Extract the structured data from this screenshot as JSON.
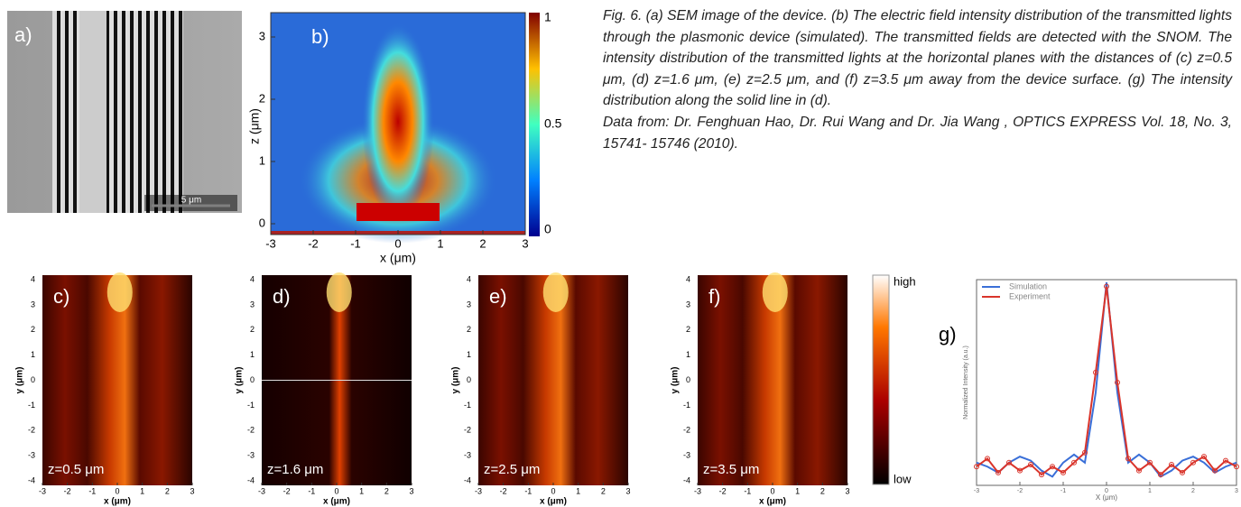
{
  "panels": {
    "a": {
      "label": "a)",
      "scale_bar": "5 μm"
    },
    "b": {
      "label": "b)",
      "x_label": "x (μm)",
      "y_label": "z (μm)",
      "xticks": [
        -3,
        -2,
        -1,
        0,
        1,
        2,
        3
      ],
      "yticks": [
        0,
        1,
        2,
        3
      ],
      "colorbar_ticks": [
        0,
        0.5,
        1
      ]
    },
    "map_axes": {
      "x_label": "x (μm)",
      "y_label": "y (μm)",
      "xticks": [
        -3,
        -2,
        -1,
        0,
        1,
        2,
        3
      ],
      "yticks": [
        4,
        3,
        2,
        1,
        0,
        -1,
        -2,
        -3,
        -4
      ]
    },
    "maps": [
      {
        "label": "c)",
        "note": "z=0.5 μm"
      },
      {
        "label": "d)",
        "note": "z=1.6 μm"
      },
      {
        "label": "e)",
        "note": "z=2.5 μm"
      },
      {
        "label": "f)",
        "note": "z=3.5 μm"
      }
    ],
    "colorbar": {
      "high": "high",
      "low": "low"
    },
    "g": {
      "label": "g)",
      "type": "line",
      "x_label": "X (μm)",
      "y_label": "Normalized Intensity (a.u.)",
      "x": [
        -3,
        -2.75,
        -2.5,
        -2.25,
        -2,
        -1.75,
        -1.5,
        -1.25,
        -1,
        -0.75,
        -0.5,
        -0.25,
        0,
        0.25,
        0.5,
        0.75,
        1,
        1.25,
        1.5,
        1.75,
        2,
        2.25,
        2.5,
        2.75,
        3
      ],
      "series": [
        {
          "name": "Simulation",
          "color": "#3a6fd8",
          "values": [
            0.1,
            0.08,
            0.05,
            0.1,
            0.13,
            0.11,
            0.06,
            0.03,
            0.1,
            0.14,
            0.1,
            0.45,
            1,
            0.45,
            0.1,
            0.14,
            0.1,
            0.03,
            0.06,
            0.11,
            0.13,
            0.1,
            0.05,
            0.08,
            0.1
          ]
        },
        {
          "name": "Experiment",
          "color": "#d9342b",
          "values": [
            0.08,
            0.12,
            0.05,
            0.1,
            0.06,
            0.09,
            0.04,
            0.08,
            0.05,
            0.1,
            0.15,
            0.55,
            0.98,
            0.5,
            0.12,
            0.06,
            0.1,
            0.04,
            0.09,
            0.05,
            0.1,
            0.13,
            0.06,
            0.11,
            0.08
          ]
        }
      ],
      "xlim": [
        -3,
        3
      ],
      "ylim": [
        0,
        1
      ],
      "xticks": [
        -3,
        -2,
        -1,
        0,
        1,
        2,
        3
      ]
    }
  },
  "caption": {
    "text": "Fig. 6. (a) SEM image of the device. (b) The electric field intensity distribution of the transmitted lights through the plasmonic device (simulated). The transmitted fields are detected with the SNOM. The intensity distribution of the transmitted lights at the horizontal planes with the distances of (c) z=0.5 μm, (d) z=1.6 μm, (e) z=2.5 μm, and (f) z=3.5 μm away from the device surface. (g) The intensity distribution along the solid line in (d).",
    "source": "Data from: Dr. Fenghuan Hao, Dr. Rui Wang and Dr. Jia Wang , OPTICS EXPRESS Vol. 18, No. 3, 15741- 15746 (2010)."
  }
}
